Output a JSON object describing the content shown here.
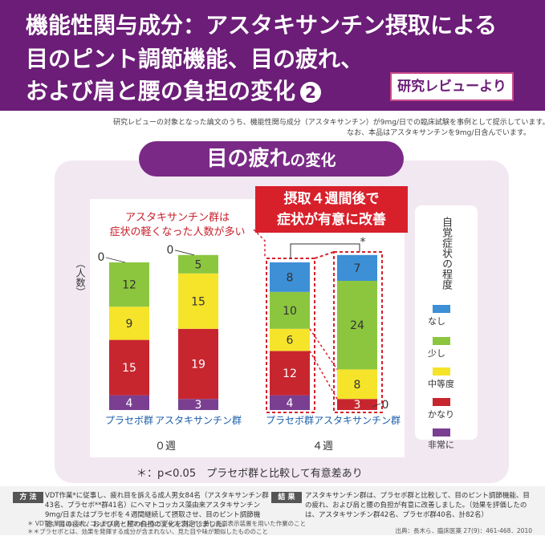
{
  "header": {
    "line1": "機能性関与成分：アスタキサンチン摂取による",
    "line2": "目のピント調節機能、目の疲れ、",
    "line3": "および肩と腰の負担の変化",
    "number": "2",
    "badge": "研究レビューより"
  },
  "notes": [
    "研究レビューの対象となった論文のうち、機能性関与成分（アスタキサンチン）が9mg/日での臨床試験を事例として提示しています。",
    "なお、本品はアスタキサンチンを9mg/日含んでいます。"
  ],
  "chart_title": {
    "main": "目の疲れ",
    "suffix": "の変化"
  },
  "callouts": {
    "red_box_line1": "摂取４週間後で",
    "red_box_line2": "症状が有意に改善",
    "red_text_line1": "アスタキサンチン群は",
    "red_text_line2": "症状の軽くなった人数が多い"
  },
  "legend": {
    "title": "自覚症状の程度",
    "items": [
      {
        "label": "なし",
        "color": "#3d8fd6"
      },
      {
        "label": "少し",
        "color": "#8cc63f"
      },
      {
        "label": "中等度",
        "color": "#f5e42a"
      },
      {
        "label": "かなり",
        "color": "#c8262f"
      },
      {
        "label": "非常に",
        "color": "#7a3f91"
      }
    ]
  },
  "chart_data": {
    "type": "bar",
    "stacked": true,
    "ylabel": "（人数）",
    "groups": [
      {
        "week": "０週",
        "bars": [
          {
            "label": "プラセボ群",
            "values": [
              0,
              12,
              9,
              15,
              4
            ]
          },
          {
            "label": "アスタキサンチン群",
            "values": [
              0,
              5,
              15,
              19,
              3
            ]
          }
        ]
      },
      {
        "week": "４週",
        "bars": [
          {
            "label": "プラセボ群",
            "values": [
              8,
              10,
              6,
              12,
              4
            ]
          },
          {
            "label": "アスタキサンチン群",
            "values": [
              7,
              24,
              8,
              3,
              0
            ]
          }
        ]
      }
    ],
    "series_order": [
      "なし",
      "少し",
      "中等度",
      "かなり",
      "非常に"
    ],
    "significance": "*",
    "footnote": "＊：p<0.05　プラセボ群と比較して有意差あり"
  },
  "bottom": {
    "method_tag": "方 法",
    "method_text": "VDT作業*に従事し、疲れ目を訴える成人男女84名（アスタキサンチン群43名、プラセボ**群41名）にヘマトコッカス藻由来アスタキサンチン9mg/日またはプラセボを４週間継続して摂取させ、目のピント調節機能、目の疲れ、および肩と腰の負担の変化を測定しました。",
    "result_tag": "結 果",
    "result_text": "アスタキサンチン群は、プラセボ群と比較して、目のピント調節機能、目の疲れ、および肩と腰の負担が有意に改善しました。（効果を評価したのは、アスタキサンチン群42名、プラセボ群40名、計82名）",
    "note1": "＊ VDT作業とは、パソコンやスマートフォンなどディスプレイを持つ画面表示装置を用いた作業のこと",
    "note2": "＊＊プラセボとは、効果を発揮する成分が含まれない、見た目や味が類似したもののこと",
    "source": "出典：長木ら．臨床医薬 27(9)：461-468．2010"
  }
}
